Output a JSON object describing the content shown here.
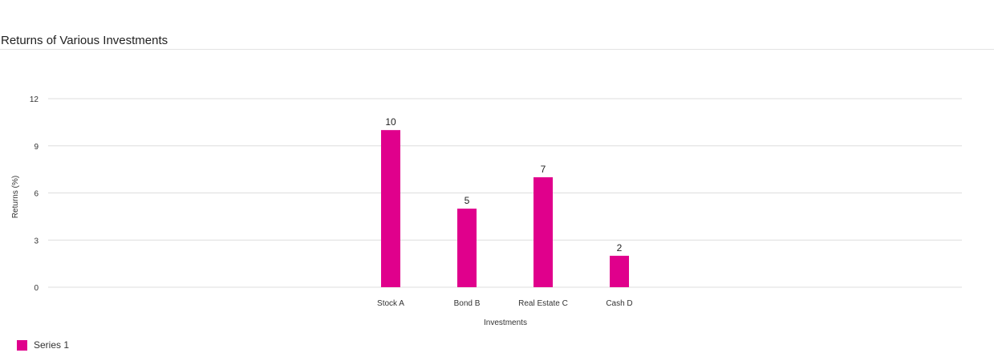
{
  "chart_data": {
    "type": "bar",
    "title": "Returns of Various Investments",
    "xlabel": "Investments",
    "ylabel": "Returns (%)",
    "categories": [
      "Stock A",
      "Bond B",
      "Real Estate C",
      "Cash D"
    ],
    "series": [
      {
        "name": "Series 1",
        "values": [
          10,
          5,
          7,
          2
        ]
      }
    ],
    "ylim": [
      0,
      12
    ],
    "yticks": [
      0,
      3,
      6,
      9,
      12
    ],
    "grid": true,
    "data_labels": true,
    "legend": "bottom-left",
    "colors": {
      "bar": "#e0008c",
      "grid": "#dddddd",
      "axis_text": "#333333"
    }
  }
}
